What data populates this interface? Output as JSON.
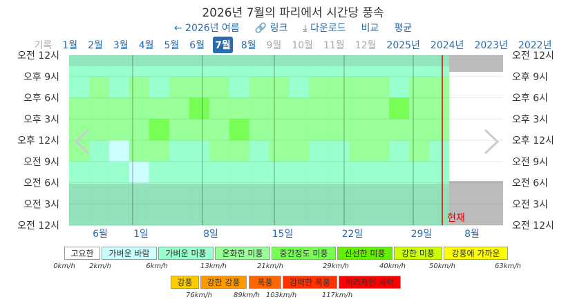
{
  "header": {
    "title": "2026년 7월의 파리에서 시간당 풍속",
    "nav": [
      "2026년 여름",
      "링크",
      "다운로드",
      "비교",
      "평균"
    ]
  },
  "tabs": {
    "items": [
      "기록",
      "1월",
      "2월",
      "3월",
      "4월",
      "5월",
      "6월",
      "7월",
      "8월",
      "9월",
      "10월",
      "11월",
      "12월",
      "2025년",
      "2024년",
      "2023년",
      "2022년"
    ],
    "active": 7,
    "disabled": [
      0,
      9,
      10,
      11,
      12
    ]
  },
  "heatmap": {
    "y_labels": [
      "오전 12시",
      "오후 9시",
      "오후 6시",
      "오후 3시",
      "오후 12시",
      "오전 9시",
      "오전 6시",
      "오전 3시",
      "오전 12시"
    ],
    "x_labels": [
      "6월",
      "1일",
      "8일",
      "15일",
      "22일",
      "29일",
      "8월"
    ],
    "now_label": "현재",
    "grid": [
      [
        10,
        11,
        9,
        12,
        10,
        11,
        10,
        12,
        11,
        9,
        10,
        11,
        12,
        10,
        9,
        11,
        10,
        12,
        11
      ],
      [
        12,
        14,
        11,
        13,
        12,
        15,
        13,
        14,
        12,
        13,
        15,
        12,
        13,
        14,
        16,
        13,
        12,
        14,
        13
      ],
      [
        14,
        13,
        16,
        15,
        14,
        17,
        22,
        15,
        13,
        16,
        14,
        18,
        15,
        13,
        17,
        16,
        22,
        14,
        15
      ],
      [
        15,
        14,
        13,
        16,
        22,
        15,
        14,
        17,
        23,
        16,
        14,
        15,
        17,
        16,
        14,
        13,
        16,
        15,
        14
      ],
      [
        13,
        12,
        5,
        14,
        13,
        12,
        11,
        15,
        13,
        12,
        14,
        13,
        12,
        11,
        13,
        14,
        12,
        13,
        12
      ],
      [
        10,
        11,
        9,
        4,
        10,
        12,
        9,
        11,
        10,
        9,
        11,
        10,
        12,
        9,
        10,
        11,
        9,
        10,
        11
      ],
      [
        9,
        8,
        10,
        9,
        11,
        8,
        9,
        10,
        8,
        9,
        10,
        11,
        9,
        8,
        10,
        9,
        11,
        10,
        9
      ],
      [
        8,
        9,
        7,
        10,
        8,
        9,
        11,
        8,
        9,
        10,
        8,
        9,
        10,
        8,
        9,
        10,
        9,
        8,
        10
      ]
    ]
  },
  "legend": {
    "items": [
      {
        "label": "고요한",
        "color": "#ffffff"
      },
      {
        "label": "가벼운 바람",
        "color": "#ccffff"
      },
      {
        "label": "가벼운 미풍",
        "color": "#99ffcc"
      },
      {
        "label": "온화한 미풍",
        "color": "#99ff99"
      },
      {
        "label": "중간정도 미풍",
        "color": "#77ff55"
      },
      {
        "label": "신선한 미풍",
        "color": "#66ee00"
      },
      {
        "label": "강한 미풍",
        "color": "#ccff00"
      },
      {
        "label": "강풍에 가까운",
        "color": "#ffff00"
      },
      {
        "label": "강풍",
        "color": "#ffcc00"
      },
      {
        "label": "강한 강풍",
        "color": "#ff9900"
      },
      {
        "label": "폭풍",
        "color": "#ff6600"
      },
      {
        "label": "강력한 폭풍",
        "color": "#ff3300"
      },
      {
        "label": "허리케인 세력",
        "color": "#ff0000"
      }
    ],
    "thresholds": [
      {
        "value": 0,
        "label": "0km/h"
      },
      {
        "value": 2,
        "label": "2km/h"
      },
      {
        "value": 6,
        "label": "6km/h"
      },
      {
        "value": 13,
        "label": "13km/h"
      },
      {
        "value": 21,
        "label": "21km/h"
      },
      {
        "value": 29,
        "label": "29km/h"
      },
      {
        "value": 40,
        "label": "40km/h"
      },
      {
        "value": 50,
        "label": "50km/h"
      },
      {
        "value": 63,
        "label": "63km/h"
      },
      {
        "value": 76,
        "label": "76km/h"
      },
      {
        "value": 89,
        "label": "89km/h"
      },
      {
        "value": 103,
        "label": "103km/h"
      },
      {
        "value": 117,
        "label": "117km/h"
      }
    ]
  }
}
